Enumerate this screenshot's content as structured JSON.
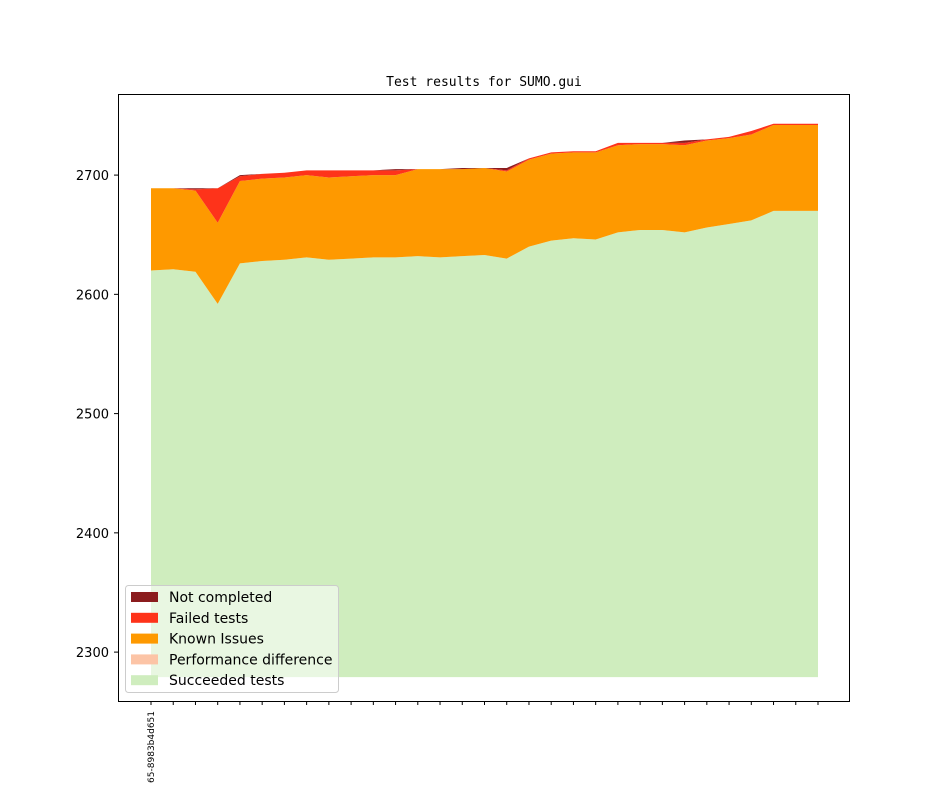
{
  "chart_data": {
    "type": "area",
    "title": "Test results for SUMO.gui",
    "xlabel": "",
    "ylabel": "",
    "ylim": [
      2259,
      2768
    ],
    "yticks": [
      2300,
      2400,
      2500,
      2600,
      2700
    ],
    "x_tick_labels": [
      "65-8983b4d651"
    ],
    "grid": false,
    "legend_position": "lower-left",
    "stacking": "cumulative",
    "series": [
      {
        "name": "Succeeded tests",
        "color": "#cfedbe",
        "values": [
          2620,
          2621,
          2619,
          2592,
          2626,
          2628,
          2629,
          2631,
          2629,
          2630,
          2631,
          2631,
          2632,
          2631,
          2632,
          2633,
          2630,
          2640,
          2645,
          2647,
          2646,
          2652,
          2654,
          2654,
          2652,
          2656,
          2659,
          2662,
          2670,
          2670,
          2670
        ]
      },
      {
        "name": "Performance difference",
        "color": "#fcc4a6",
        "values": [
          2620,
          2621,
          2619,
          2592,
          2626,
          2628,
          2629,
          2631,
          2629,
          2630,
          2631,
          2631,
          2632,
          2631,
          2632,
          2633,
          2630,
          2640,
          2645,
          2647,
          2646,
          2652,
          2654,
          2654,
          2652,
          2656,
          2659,
          2662,
          2670,
          2670,
          2670
        ]
      },
      {
        "name": "Known Issues",
        "color": "#fe9900",
        "values": [
          2689,
          2689,
          2687,
          2660,
          2695,
          2697,
          2698,
          2700,
          2698,
          2699,
          2700,
          2700,
          2705,
          2705,
          2705,
          2706,
          2703,
          2713,
          2718,
          2719,
          2719,
          2725,
          2726,
          2726,
          2725,
          2729,
          2731,
          2734,
          2742,
          2742,
          2742
        ]
      },
      {
        "name": "Failed tests",
        "color": "#fe331a",
        "values": [
          2689,
          2689,
          2688,
          2689,
          2699,
          2701,
          2702,
          2704,
          2704,
          2704,
          2704,
          2704,
          2705,
          2705,
          2705,
          2706,
          2704,
          2714,
          2719,
          2720,
          2720,
          2727,
          2727,
          2727,
          2727,
          2730,
          2732,
          2737,
          2743,
          2743,
          2743
        ]
      },
      {
        "name": "Not completed",
        "color": "#8b1c1e",
        "values": [
          2689,
          2689,
          2689,
          2689,
          2700,
          2701,
          2702,
          2704,
          2704,
          2704,
          2704,
          2705,
          2705,
          2705,
          2706,
          2706,
          2706,
          2714,
          2719,
          2720,
          2720,
          2727,
          2727,
          2727,
          2729,
          2730,
          2732,
          2737,
          2743,
          2743,
          2743
        ]
      }
    ]
  }
}
